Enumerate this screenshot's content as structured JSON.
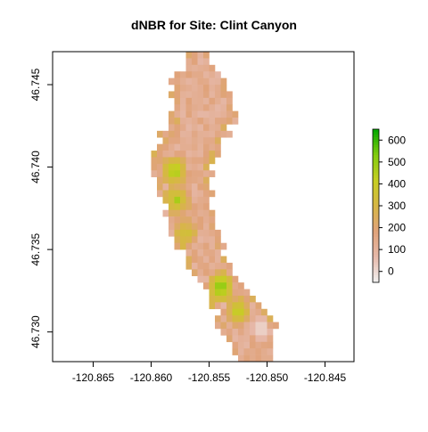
{
  "chart_data": {
    "type": "heatmap",
    "title": "dNBR for Site: Clint Canyon",
    "xlabel": "",
    "ylabel": "",
    "xlim": [
      -120.8685,
      -120.8425
    ],
    "ylim": [
      46.7282,
      46.747
    ],
    "x_ticks": [
      -120.865,
      -120.86,
      -120.855,
      -120.85,
      -120.845
    ],
    "x_tick_labels": [
      "-120.865",
      "-120.860",
      "-120.855",
      "-120.850",
      "-120.845"
    ],
    "y_ticks": [
      46.73,
      46.735,
      46.74,
      46.745
    ],
    "y_tick_labels": [
      "46.730",
      "46.735",
      "46.740",
      "46.745"
    ],
    "colorbar": {
      "min": -50,
      "max": 650,
      "ticks": [
        0,
        100,
        200,
        300,
        400,
        500,
        600
      ],
      "tick_labels": [
        "0",
        "100",
        "200",
        "300",
        "400",
        "500",
        "600"
      ],
      "colors": [
        "#f2f2f2",
        "#e6b9aa",
        "#e0a37b",
        "#d7b646",
        "#c6ce23",
        "#83cc0e",
        "#00a600"
      ]
    },
    "raster": {
      "cell_size_lon": 0.0005,
      "cell_size_lat": 0.0004,
      "band_center_lon_at": [
        [
          46.747,
          -120.8561
        ],
        [
          46.743,
          -120.8555
        ],
        [
          46.74,
          -120.8575
        ],
        [
          46.737,
          -120.8568
        ],
        [
          46.734,
          -120.855
        ],
        [
          46.731,
          -120.852
        ],
        [
          46.7285,
          -120.851
        ]
      ],
      "band_half_width_lon": [
        [
          46.747,
          0.0005
        ],
        [
          46.7455,
          0.0022
        ],
        [
          46.743,
          0.0028
        ],
        [
          46.74,
          0.0025
        ],
        [
          46.737,
          0.0018
        ],
        [
          46.734,
          0.002
        ],
        [
          46.731,
          0.0023
        ],
        [
          46.7285,
          0.0018
        ]
      ],
      "hotspots": [
        {
          "lon": -120.858,
          "lat": 46.7398,
          "value": 480
        },
        {
          "lon": -120.8578,
          "lat": 46.738,
          "value": 430
        },
        {
          "lon": -120.854,
          "lat": 46.7327,
          "value": 520
        },
        {
          "lon": -120.8525,
          "lat": 46.7313,
          "value": 400
        },
        {
          "lon": -120.857,
          "lat": 46.736,
          "value": 360
        }
      ],
      "low_spots": [
        {
          "lon": -120.8505,
          "lat": 46.7302,
          "value": -20
        },
        {
          "lon": -120.853,
          "lat": 46.7435,
          "value": 120
        }
      ]
    }
  }
}
